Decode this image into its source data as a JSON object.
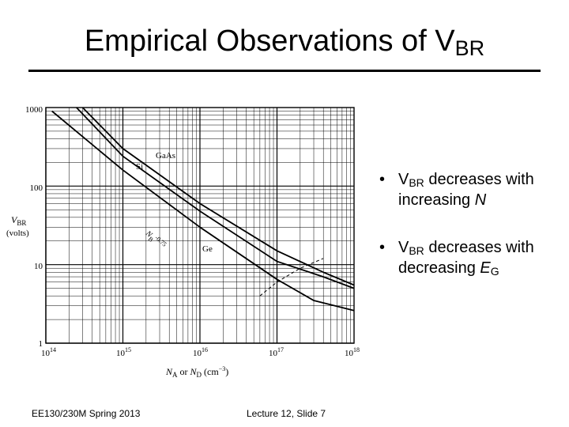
{
  "slide": {
    "title_main": "Empirical Observations of V",
    "title_sub": "BR"
  },
  "bullets": [
    {
      "dot": "•",
      "pre": "V",
      "sub": "BR",
      "post": " decreases with",
      "line2": "increasing ",
      "italic": "N",
      "italic_sub": ""
    },
    {
      "dot": "•",
      "pre": "V",
      "sub": "BR",
      "post": " decreases with",
      "line2": "decreasing ",
      "italic": "E",
      "italic_sub": "G"
    }
  ],
  "footer": {
    "left": "EE130/230M Spring 2013",
    "right": "Lecture 12, Slide 7"
  },
  "chart_data": {
    "type": "line",
    "xscale": "log",
    "yscale": "log",
    "xlim": [
      100000000000000.0,
      1e+18
    ],
    "ylim": [
      1,
      1000
    ],
    "y_tick_labels": [
      "1000",
      "100",
      "10",
      "1"
    ],
    "x_tick_labels": [
      {
        "base": "10",
        "exp": "14"
      },
      {
        "base": "10",
        "exp": "15"
      },
      {
        "base": "10",
        "exp": "16"
      },
      {
        "base": "10",
        "exp": "17"
      },
      {
        "base": "10",
        "exp": "18"
      }
    ],
    "ylabel_line1": "V",
    "ylabel_line1_sub": "BR",
    "ylabel_line2": "(volts)",
    "xlabel": {
      "a": "N",
      "a_sub": "A",
      "or": " or ",
      "d": "N",
      "d_sub": "D",
      "unit_open": " (cm",
      "unit_exp": "−3",
      "unit_close": ")"
    },
    "series": [
      {
        "name": "GaAs",
        "x": [
          300000000000000.0,
          1000000000000000.0,
          1e+16,
          1e+17,
          4e+17,
          1e+18
        ],
        "y": [
          1000,
          300,
          60,
          15,
          8,
          5.5
        ]
      },
      {
        "name": "Si",
        "x": [
          250000000000000.0,
          1000000000000000.0,
          1e+16,
          1e+17,
          4e+17,
          1e+18
        ],
        "y": [
          1000,
          240,
          48,
          11,
          7,
          5
        ]
      },
      {
        "name": "Ge",
        "x": [
          120000000000000.0,
          1000000000000000.0,
          1e+16,
          1e+17,
          3e+17,
          1e+18
        ],
        "y": [
          900,
          160,
          30,
          6.5,
          3.5,
          2.6
        ]
      },
      {
        "name": "dashed",
        "x": [
          6e+16,
          1e+17,
          2e+17,
          4e+17
        ],
        "y": [
          4,
          6,
          9,
          12
        ]
      }
    ],
    "annotation": "N",
    "annotation_sub": "B",
    "annotation_exp": "-0.75"
  }
}
